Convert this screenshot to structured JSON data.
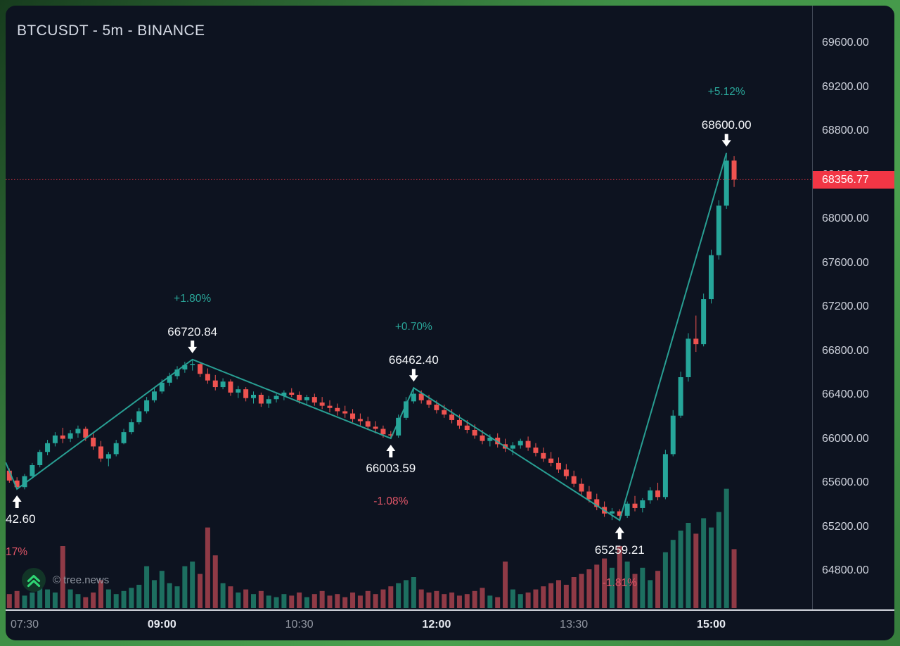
{
  "title": "BTCUSDT - 5m - BINANCE",
  "watermark": {
    "icon": "double-chevron-up-icon",
    "text": "© tree.news"
  },
  "colors": {
    "background": "#0d1320",
    "frame_green": "#3f8f46",
    "up": "#26a69a",
    "down": "#ef5350",
    "volume_up": "#1d6f60",
    "volume_down": "#8f3a46",
    "zigzag": "#2aa79a",
    "pct_up": "#2aa79a",
    "pct_down": "#e25668",
    "pivot_label": "#f5f7fa",
    "price_line": "#f23645",
    "tag_bg": "#f23645",
    "tag_text": "#ffffff",
    "axis_text": "#ced2dc",
    "axis_text_major": "#e8ebf2",
    "axis_text_minor": "#9196a1",
    "title_text": "#d6dbe6",
    "watermark_text": "#9096a1",
    "logo_bg": "#123527",
    "logo_green": "#2fd573"
  },
  "price_axis": {
    "max_label": 69600,
    "min_label": 64800,
    "step": 400,
    "current_price_value": 68356.77,
    "current_price_text": "68356.77"
  },
  "time_axis": {
    "labels": [
      {
        "text": "07:30",
        "index": 3,
        "major": false
      },
      {
        "text": "09:00",
        "index": 21,
        "major": true
      },
      {
        "text": "10:30",
        "index": 39,
        "major": false
      },
      {
        "text": "12:00",
        "index": 57,
        "major": true
      },
      {
        "text": "13:30",
        "index": 75,
        "major": false
      },
      {
        "text": "15:00",
        "index": 93,
        "major": true
      }
    ]
  },
  "chart_data": {
    "type": "candlestick",
    "symbol": "BTCUSDT",
    "interval": "5m",
    "exchange": "BINANCE",
    "columns": [
      "open",
      "high",
      "low",
      "close",
      "volume"
    ],
    "candles": [
      [
        65760,
        65790,
        65690,
        65710,
        6
      ],
      [
        65710,
        65730,
        65600,
        65620,
        9
      ],
      [
        65620,
        65650,
        65542.6,
        65560,
        11
      ],
      [
        65560,
        65680,
        65540,
        65660,
        8
      ],
      [
        65660,
        65780,
        65640,
        65760,
        10
      ],
      [
        65760,
        65900,
        65740,
        65880,
        14
      ],
      [
        65880,
        65990,
        65850,
        65960,
        12
      ],
      [
        65960,
        66060,
        65930,
        66030,
        10
      ],
      [
        66030,
        66100,
        65960,
        66000,
        40
      ],
      [
        66000,
        66080,
        65970,
        66050,
        12
      ],
      [
        66050,
        66120,
        66010,
        66090,
        9
      ],
      [
        66090,
        66110,
        65980,
        66010,
        7
      ],
      [
        66010,
        66050,
        65900,
        65930,
        10
      ],
      [
        65930,
        65980,
        65790,
        65820,
        18
      ],
      [
        65820,
        65880,
        65750,
        65860,
        12
      ],
      [
        65860,
        65990,
        65840,
        65960,
        9
      ],
      [
        65960,
        66090,
        65950,
        66060,
        11
      ],
      [
        66060,
        66180,
        66040,
        66150,
        13
      ],
      [
        66150,
        66280,
        66130,
        66250,
        15
      ],
      [
        66250,
        66380,
        66230,
        66350,
        27
      ],
      [
        66350,
        66460,
        66330,
        66430,
        18
      ],
      [
        66430,
        66540,
        66410,
        66510,
        24
      ],
      [
        66510,
        66600,
        66480,
        66570,
        16
      ],
      [
        66570,
        66660,
        66540,
        66630,
        14
      ],
      [
        66630,
        66700,
        66600,
        66670,
        27
      ],
      [
        66670,
        66720.84,
        66620,
        66680,
        30
      ],
      [
        66680,
        66700,
        66560,
        66590,
        22
      ],
      [
        66590,
        66640,
        66500,
        66530,
        52
      ],
      [
        66530,
        66580,
        66440,
        66470,
        34
      ],
      [
        66470,
        66550,
        66450,
        66520,
        16
      ],
      [
        66520,
        66540,
        66390,
        66420,
        14
      ],
      [
        66420,
        66480,
        66370,
        66450,
        10
      ],
      [
        66450,
        66470,
        66340,
        66370,
        12
      ],
      [
        66370,
        66430,
        66320,
        66400,
        9
      ],
      [
        66400,
        66420,
        66290,
        66320,
        11
      ],
      [
        66320,
        66390,
        66280,
        66360,
        8
      ],
      [
        66360,
        66410,
        66330,
        66390,
        7
      ],
      [
        66390,
        66440,
        66350,
        66420,
        9
      ],
      [
        66420,
        66460,
        66380,
        66400,
        8
      ],
      [
        66400,
        66430,
        66320,
        66350,
        10
      ],
      [
        66350,
        66400,
        66310,
        66380,
        7
      ],
      [
        66380,
        66410,
        66300,
        66330,
        9
      ],
      [
        66330,
        66380,
        66270,
        66300,
        11
      ],
      [
        66300,
        66350,
        66240,
        66280,
        8
      ],
      [
        66280,
        66320,
        66210,
        66250,
        9
      ],
      [
        66250,
        66300,
        66190,
        66230,
        7
      ],
      [
        66230,
        66270,
        66150,
        66180,
        10
      ],
      [
        66180,
        66230,
        66120,
        66160,
        8
      ],
      [
        66160,
        66200,
        66080,
        66110,
        11
      ],
      [
        66110,
        66160,
        66050,
        66090,
        9
      ],
      [
        66090,
        66120,
        66010,
        66040,
        12
      ],
      [
        66040,
        66070,
        66003.59,
        66030,
        14
      ],
      [
        66030,
        66220,
        66010,
        66190,
        16
      ],
      [
        66190,
        66380,
        66170,
        66340,
        18
      ],
      [
        66340,
        66462.4,
        66320,
        66410,
        20
      ],
      [
        66410,
        66440,
        66320,
        66350,
        12
      ],
      [
        66350,
        66400,
        66280,
        66310,
        10
      ],
      [
        66310,
        66350,
        66230,
        66260,
        11
      ],
      [
        66260,
        66310,
        66190,
        66220,
        9
      ],
      [
        66220,
        66270,
        66140,
        66170,
        10
      ],
      [
        66170,
        66220,
        66090,
        66120,
        8
      ],
      [
        66120,
        66170,
        66050,
        66080,
        9
      ],
      [
        66080,
        66130,
        66000,
        66030,
        11
      ],
      [
        66030,
        66080,
        65950,
        65980,
        13
      ],
      [
        65980,
        66040,
        65930,
        66010,
        8
      ],
      [
        66010,
        66050,
        65920,
        65950,
        7
      ],
      [
        65950,
        66000,
        65880,
        65910,
        30
      ],
      [
        65910,
        65970,
        65850,
        65940,
        12
      ],
      [
        65940,
        66000,
        65910,
        65980,
        9
      ],
      [
        65980,
        66020,
        65890,
        65920,
        10
      ],
      [
        65920,
        65960,
        65840,
        65870,
        12
      ],
      [
        65870,
        65920,
        65790,
        65820,
        14
      ],
      [
        65820,
        65880,
        65750,
        65780,
        16
      ],
      [
        65780,
        65830,
        65690,
        65720,
        18
      ],
      [
        65720,
        65770,
        65630,
        65660,
        15
      ],
      [
        65660,
        65710,
        65560,
        65590,
        20
      ],
      [
        65590,
        65640,
        65490,
        65520,
        22
      ],
      [
        65520,
        65570,
        65420,
        65450,
        25
      ],
      [
        65450,
        65500,
        65350,
        65380,
        28
      ],
      [
        65380,
        65430,
        65290,
        65320,
        32
      ],
      [
        65320,
        65370,
        65260,
        65340,
        26
      ],
      [
        65340,
        65360,
        65259.21,
        65300,
        40
      ],
      [
        65300,
        65430,
        65280,
        65410,
        30
      ],
      [
        65410,
        65480,
        65340,
        65370,
        22
      ],
      [
        65370,
        65460,
        65330,
        65440,
        26
      ],
      [
        65440,
        65560,
        65410,
        65530,
        18
      ],
      [
        65530,
        65600,
        65440,
        65470,
        24
      ],
      [
        65470,
        65900,
        65450,
        65860,
        36
      ],
      [
        65860,
        66260,
        65840,
        66210,
        44
      ],
      [
        66210,
        66610,
        66190,
        66560,
        50
      ],
      [
        66560,
        66960,
        66520,
        66910,
        55
      ],
      [
        66910,
        67120,
        66790,
        66860,
        48
      ],
      [
        66860,
        67320,
        66840,
        67270,
        58
      ],
      [
        67270,
        67720,
        67230,
        67670,
        52
      ],
      [
        67670,
        68170,
        67630,
        68120,
        62
      ],
      [
        68120,
        68600,
        68090,
        68530,
        77
      ],
      [
        68530,
        68570,
        68290,
        68356.77,
        38
      ]
    ],
    "pivots": [
      {
        "index": 2,
        "price": 65542.6,
        "label": "42.60",
        "pct": "17%",
        "dir": "low",
        "align": "left"
      },
      {
        "index": 25,
        "price": 66720.84,
        "label": "66720.84",
        "pct": "+1.80%",
        "dir": "high",
        "align": "center"
      },
      {
        "index": 51,
        "price": 66003.59,
        "label": "66003.59",
        "pct": "-1.08%",
        "dir": "low",
        "align": "center"
      },
      {
        "index": 54,
        "price": 66462.4,
        "label": "66462.40",
        "pct": "+0.70%",
        "dir": "high",
        "align": "center"
      },
      {
        "index": 81,
        "price": 65259.21,
        "label": "65259.21",
        "pct": "-1.81%",
        "dir": "low",
        "align": "center"
      },
      {
        "index": 95,
        "price": 68600.0,
        "label": "68600.00",
        "pct": "+5.12%",
        "dir": "high",
        "align": "center"
      }
    ]
  }
}
